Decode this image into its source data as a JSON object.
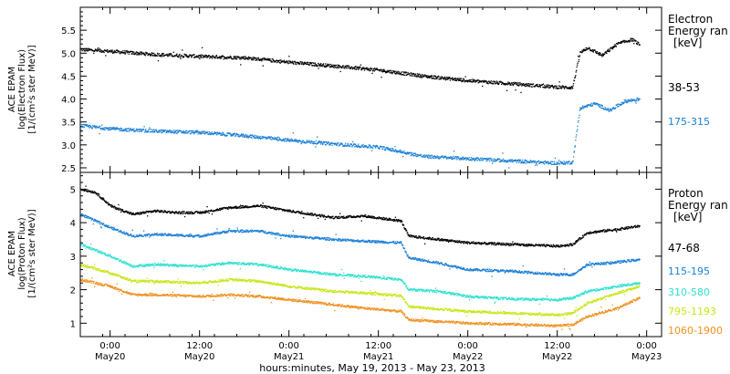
{
  "figure": {
    "xlabel": "hours:minutes, May 19, 2013 - May 23, 2013",
    "x_range": [
      "2013-05-19T20:00",
      "2013-05-23T02:00"
    ],
    "x_ticks": [
      {
        "time": "2013-05-20T00:00",
        "line1": "0:00",
        "line2": "May20"
      },
      {
        "time": "2013-05-20T12:00",
        "line1": "12:00",
        "line2": "May20"
      },
      {
        "time": "2013-05-21T00:00",
        "line1": "0:00",
        "line2": "May21"
      },
      {
        "time": "2013-05-21T12:00",
        "line1": "12:00",
        "line2": "May21"
      },
      {
        "time": "2013-05-22T00:00",
        "line1": "0:00",
        "line2": "May22"
      },
      {
        "time": "2013-05-22T12:00",
        "line1": "12:00",
        "line2": "May22"
      },
      {
        "time": "2013-05-23T00:00",
        "line1": "0:00",
        "line2": "May23"
      }
    ]
  },
  "chart_data": [
    {
      "type": "scatter",
      "ylabel_lines": [
        "ACE EPAM",
        "log(Electron Flux)",
        "[1/(cm²s ster MeV)]"
      ],
      "ylim": [
        2.4,
        6.0
      ],
      "yticks": [
        "2.5",
        "3.0",
        "3.5",
        "4.0",
        "4.5",
        "5.0",
        "5.5"
      ],
      "legend": {
        "title_lines": [
          "Electron",
          "Energy ran",
          "[keV]"
        ],
        "placement": "right"
      },
      "series": [
        {
          "name": "38-53",
          "color": "#000000",
          "points": [
            [
              "2013-05-19T20:00",
              5.08
            ],
            [
              "2013-05-20T00:00",
              5.04
            ],
            [
              "2013-05-20T06:00",
              4.97
            ],
            [
              "2013-05-20T12:00",
              4.93
            ],
            [
              "2013-05-20T18:00",
              4.9
            ],
            [
              "2013-05-21T00:00",
              4.8
            ],
            [
              "2013-05-21T06:00",
              4.72
            ],
            [
              "2013-05-21T12:00",
              4.63
            ],
            [
              "2013-05-21T18:00",
              4.5
            ],
            [
              "2013-05-22T00:00",
              4.4
            ],
            [
              "2013-05-22T06:00",
              4.33
            ],
            [
              "2013-05-22T12:00",
              4.26
            ],
            [
              "2013-05-22T14:00",
              4.25
            ],
            [
              "2013-05-22T15:00",
              5.0
            ],
            [
              "2013-05-22T16:00",
              5.12
            ],
            [
              "2013-05-22T18:00",
              4.95
            ],
            [
              "2013-05-22T20:00",
              5.2
            ],
            [
              "2013-05-22T22:00",
              5.3
            ],
            [
              "2013-05-22T23:00",
              5.18
            ]
          ]
        },
        {
          "name": "175-315",
          "color": "#1a7fd6",
          "points": [
            [
              "2013-05-19T20:00",
              3.42
            ],
            [
              "2013-05-20T00:00",
              3.35
            ],
            [
              "2013-05-20T06:00",
              3.3
            ],
            [
              "2013-05-20T12:00",
              3.27
            ],
            [
              "2013-05-20T18:00",
              3.2
            ],
            [
              "2013-05-21T00:00",
              3.1
            ],
            [
              "2013-05-21T06:00",
              3.02
            ],
            [
              "2013-05-21T12:00",
              2.95
            ],
            [
              "2013-05-21T18:00",
              2.75
            ],
            [
              "2013-05-22T00:00",
              2.7
            ],
            [
              "2013-05-22T06:00",
              2.65
            ],
            [
              "2013-05-22T12:00",
              2.6
            ],
            [
              "2013-05-22T14:00",
              2.62
            ],
            [
              "2013-05-22T15:00",
              3.8
            ],
            [
              "2013-05-22T17:00",
              3.9
            ],
            [
              "2013-05-22T19:00",
              3.75
            ],
            [
              "2013-05-22T21:00",
              3.95
            ],
            [
              "2013-05-22T23:00",
              4.0
            ]
          ]
        }
      ]
    },
    {
      "type": "scatter",
      "ylabel_lines": [
        "ACE EPAM",
        "log(Proton Flux)",
        "[1/(cm²s ster MeV)]"
      ],
      "ylim": [
        0.6,
        5.5
      ],
      "yticks": [
        "1",
        "2",
        "3",
        "4",
        "5"
      ],
      "legend": {
        "title_lines": [
          "Proton",
          "Energy ran",
          "[keV]"
        ],
        "placement": "right"
      },
      "series": [
        {
          "name": "47-68",
          "color": "#000000",
          "points": [
            [
              "2013-05-19T20:00",
              5.0
            ],
            [
              "2013-05-19T22:00",
              4.9
            ],
            [
              "2013-05-20T00:00",
              4.5
            ],
            [
              "2013-05-20T03:00",
              4.25
            ],
            [
              "2013-05-20T06:00",
              4.35
            ],
            [
              "2013-05-20T09:00",
              4.3
            ],
            [
              "2013-05-20T12:00",
              4.3
            ],
            [
              "2013-05-20T16:00",
              4.45
            ],
            [
              "2013-05-20T20:00",
              4.5
            ],
            [
              "2013-05-21T00:00",
              4.35
            ],
            [
              "2013-05-21T06:00",
              4.15
            ],
            [
              "2013-05-21T10:00",
              4.2
            ],
            [
              "2013-05-21T15:00",
              4.05
            ],
            [
              "2013-05-21T16:00",
              3.6
            ],
            [
              "2013-05-21T20:00",
              3.5
            ],
            [
              "2013-05-22T00:00",
              3.4
            ],
            [
              "2013-05-22T06:00",
              3.35
            ],
            [
              "2013-05-22T12:00",
              3.3
            ],
            [
              "2013-05-22T14:00",
              3.35
            ],
            [
              "2013-05-22T16:00",
              3.7
            ],
            [
              "2013-05-22T20:00",
              3.8
            ],
            [
              "2013-05-22T23:00",
              3.9
            ]
          ]
        },
        {
          "name": "115-195",
          "color": "#1a7fd6",
          "points": [
            [
              "2013-05-19T20:00",
              4.25
            ],
            [
              "2013-05-20T00:00",
              3.85
            ],
            [
              "2013-05-20T03:00",
              3.6
            ],
            [
              "2013-05-20T06:00",
              3.65
            ],
            [
              "2013-05-20T12:00",
              3.6
            ],
            [
              "2013-05-20T16:00",
              3.75
            ],
            [
              "2013-05-20T20:00",
              3.75
            ],
            [
              "2013-05-21T00:00",
              3.6
            ],
            [
              "2013-05-21T06:00",
              3.5
            ],
            [
              "2013-05-21T10:00",
              3.45
            ],
            [
              "2013-05-21T15:00",
              3.4
            ],
            [
              "2013-05-21T16:00",
              2.95
            ],
            [
              "2013-05-21T20:00",
              2.8
            ],
            [
              "2013-05-22T00:00",
              2.6
            ],
            [
              "2013-05-22T06:00",
              2.55
            ],
            [
              "2013-05-22T12:00",
              2.45
            ],
            [
              "2013-05-22T14:00",
              2.45
            ],
            [
              "2013-05-22T16:00",
              2.75
            ],
            [
              "2013-05-22T20:00",
              2.82
            ],
            [
              "2013-05-22T23:00",
              2.9
            ]
          ]
        },
        {
          "name": "310-580",
          "color": "#2fe0d0",
          "points": [
            [
              "2013-05-19T20:00",
              3.35
            ],
            [
              "2013-05-20T00:00",
              3.0
            ],
            [
              "2013-05-20T03:00",
              2.7
            ],
            [
              "2013-05-20T06:00",
              2.75
            ],
            [
              "2013-05-20T12:00",
              2.7
            ],
            [
              "2013-05-20T16:00",
              2.8
            ],
            [
              "2013-05-20T20:00",
              2.75
            ],
            [
              "2013-05-21T00:00",
              2.6
            ],
            [
              "2013-05-21T06:00",
              2.45
            ],
            [
              "2013-05-21T10:00",
              2.4
            ],
            [
              "2013-05-21T15:00",
              2.3
            ],
            [
              "2013-05-21T16:00",
              2.0
            ],
            [
              "2013-05-21T20:00",
              1.95
            ],
            [
              "2013-05-22T00:00",
              1.8
            ],
            [
              "2013-05-22T06:00",
              1.72
            ],
            [
              "2013-05-22T12:00",
              1.7
            ],
            [
              "2013-05-22T14:00",
              1.75
            ],
            [
              "2013-05-22T16:00",
              1.95
            ],
            [
              "2013-05-22T20:00",
              2.1
            ],
            [
              "2013-05-22T23:00",
              2.2
            ]
          ]
        },
        {
          "name": "795-1193",
          "color": "#c9e619",
          "points": [
            [
              "2013-05-19T20:00",
              2.75
            ],
            [
              "2013-05-20T00:00",
              2.5
            ],
            [
              "2013-05-20T03:00",
              2.25
            ],
            [
              "2013-05-20T06:00",
              2.25
            ],
            [
              "2013-05-20T12:00",
              2.2
            ],
            [
              "2013-05-20T16:00",
              2.3
            ],
            [
              "2013-05-20T20:00",
              2.25
            ],
            [
              "2013-05-21T00:00",
              2.1
            ],
            [
              "2013-05-21T06:00",
              1.95
            ],
            [
              "2013-05-21T10:00",
              1.9
            ],
            [
              "2013-05-21T15:00",
              1.82
            ],
            [
              "2013-05-21T16:00",
              1.5
            ],
            [
              "2013-05-21T20:00",
              1.42
            ],
            [
              "2013-05-22T00:00",
              1.35
            ],
            [
              "2013-05-22T06:00",
              1.3
            ],
            [
              "2013-05-22T12:00",
              1.25
            ],
            [
              "2013-05-22T14:00",
              1.3
            ],
            [
              "2013-05-22T16:00",
              1.6
            ],
            [
              "2013-05-22T20:00",
              1.9
            ],
            [
              "2013-05-22T23:00",
              2.1
            ]
          ]
        },
        {
          "name": "1060-1900",
          "color": "#f0901e",
          "points": [
            [
              "2013-05-19T20:00",
              2.3
            ],
            [
              "2013-05-20T00:00",
              2.1
            ],
            [
              "2013-05-20T03:00",
              1.85
            ],
            [
              "2013-05-20T06:00",
              1.85
            ],
            [
              "2013-05-20T12:00",
              1.8
            ],
            [
              "2013-05-20T16:00",
              1.85
            ],
            [
              "2013-05-20T20:00",
              1.8
            ],
            [
              "2013-05-21T00:00",
              1.7
            ],
            [
              "2013-05-21T06:00",
              1.55
            ],
            [
              "2013-05-21T10:00",
              1.45
            ],
            [
              "2013-05-21T15:00",
              1.35
            ],
            [
              "2013-05-21T16:00",
              1.1
            ],
            [
              "2013-05-21T20:00",
              1.05
            ],
            [
              "2013-05-22T00:00",
              1.0
            ],
            [
              "2013-05-22T06:00",
              0.97
            ],
            [
              "2013-05-22T12:00",
              0.92
            ],
            [
              "2013-05-22T14:00",
              0.95
            ],
            [
              "2013-05-22T16:00",
              1.2
            ],
            [
              "2013-05-22T20:00",
              1.45
            ],
            [
              "2013-05-22T23:00",
              1.75
            ]
          ]
        }
      ]
    }
  ]
}
